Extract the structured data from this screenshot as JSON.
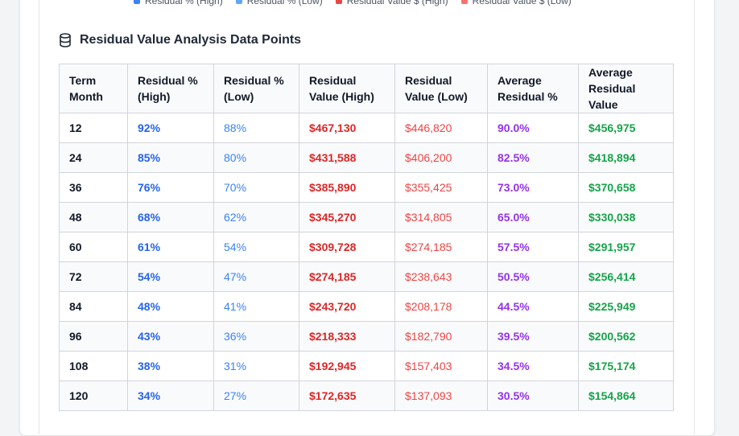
{
  "legend": [
    {
      "label": "Residual % (High)",
      "color": "#3b82f6"
    },
    {
      "label": "Residual % (Low)",
      "color": "#60a5fa"
    },
    {
      "label": "Residual Value $ (High)",
      "color": "#ef4444"
    },
    {
      "label": "Residual Value $ (Low)",
      "color": "#f87171"
    }
  ],
  "section": {
    "title": "Residual Value Analysis Data Points",
    "icon": "database-icon"
  },
  "table": {
    "headers": [
      [
        "Term",
        "Month"
      ],
      [
        "Residual %",
        "(High)"
      ],
      [
        "Residual %",
        "(Low)"
      ],
      [
        "Residual",
        "Value (High)"
      ],
      [
        "Residual",
        "Value (Low)"
      ],
      [
        "Average",
        "Residual %"
      ],
      [
        "Average",
        "Residual Value"
      ]
    ],
    "rows": [
      [
        "12",
        "92%",
        "88%",
        "$467,130",
        "$446,820",
        "90.0%",
        "$456,975"
      ],
      [
        "24",
        "85%",
        "80%",
        "$431,588",
        "$406,200",
        "82.5%",
        "$418,894"
      ],
      [
        "36",
        "76%",
        "70%",
        "$385,890",
        "$355,425",
        "73.0%",
        "$370,658"
      ],
      [
        "48",
        "68%",
        "62%",
        "$345,270",
        "$314,805",
        "65.0%",
        "$330,038"
      ],
      [
        "60",
        "61%",
        "54%",
        "$309,728",
        "$274,185",
        "57.5%",
        "$291,957"
      ],
      [
        "72",
        "54%",
        "47%",
        "$274,185",
        "$238,643",
        "50.5%",
        "$256,414"
      ],
      [
        "84",
        "48%",
        "41%",
        "$243,720",
        "$208,178",
        "44.5%",
        "$225,949"
      ],
      [
        "96",
        "43%",
        "36%",
        "$218,333",
        "$182,790",
        "39.5%",
        "$200,562"
      ],
      [
        "108",
        "38%",
        "31%",
        "$192,945",
        "$157,403",
        "34.5%",
        "$175,174"
      ],
      [
        "120",
        "34%",
        "27%",
        "$172,635",
        "$137,093",
        "30.5%",
        "$154,864"
      ]
    ]
  }
}
